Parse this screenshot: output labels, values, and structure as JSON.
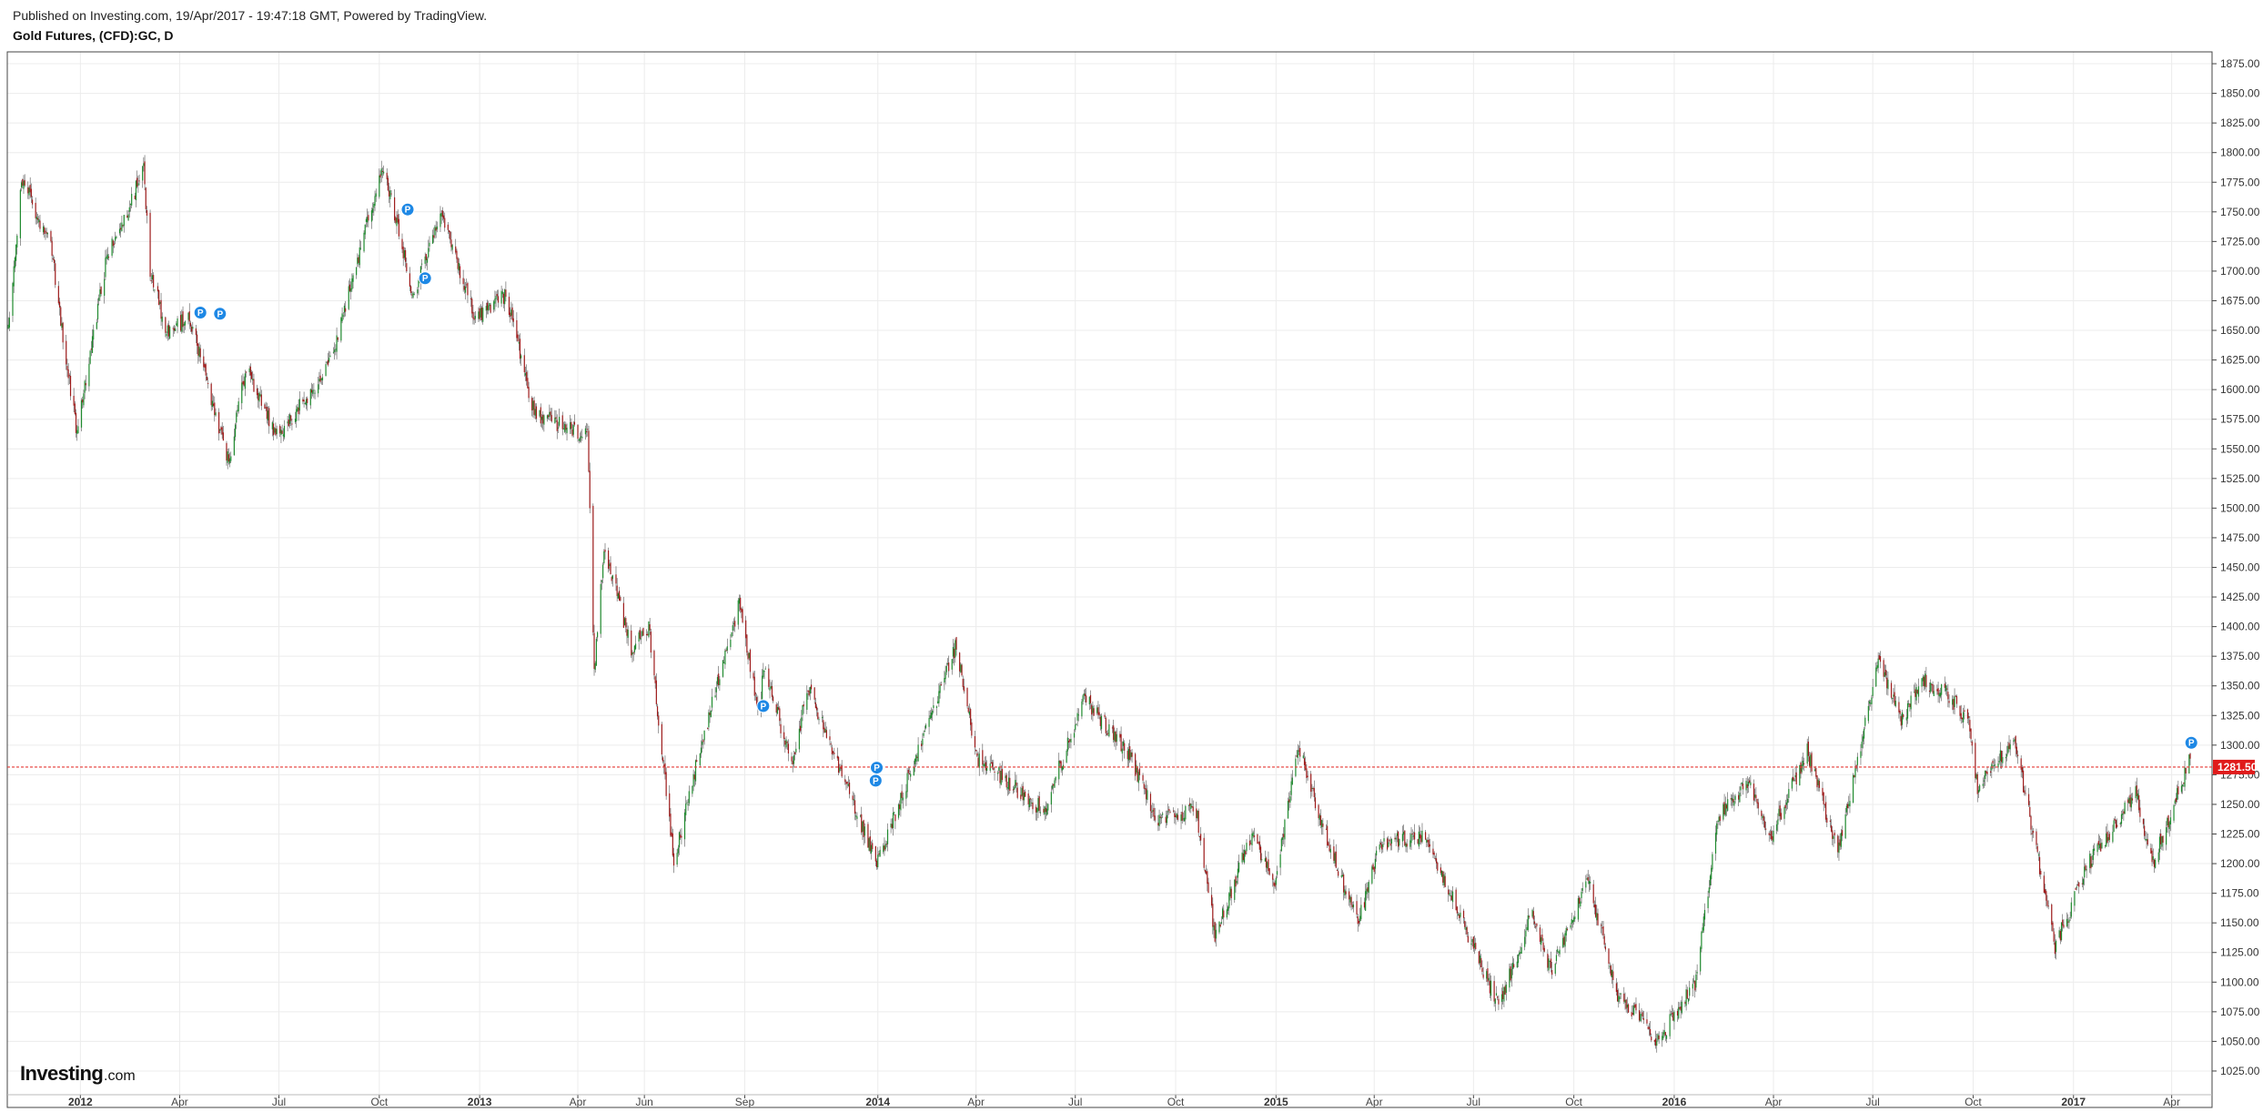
{
  "header": {
    "published": "Published on Investing.com, 19/Apr/2017 - 19:47:18 GMT, Powered by TradingView.",
    "title": "Gold Futures, (CFD):GC, D"
  },
  "logo": {
    "main": "Investing",
    "domain": ".com"
  },
  "colors": {
    "up": "#1f8a2e",
    "down": "#9e1b1b",
    "wick": "#555555",
    "price_line": "#e53935",
    "price_tag": "#e01b1b",
    "marker": "#1e88e5",
    "grid": "#ececec",
    "frame": "#444444"
  },
  "chart_data": {
    "type": "candlestick",
    "title": "Gold Futures, (CFD):GC, D",
    "interval": "D",
    "ylim": [
      1005,
      1885
    ],
    "y_ticks": [
      1025,
      1050,
      1075,
      1100,
      1125,
      1150,
      1175,
      1200,
      1225,
      1250,
      1275,
      1300,
      1325,
      1350,
      1375,
      1400,
      1425,
      1450,
      1475,
      1500,
      1525,
      1550,
      1575,
      1600,
      1625,
      1650,
      1675,
      1700,
      1725,
      1750,
      1775,
      1800,
      1825,
      1850,
      1875
    ],
    "x_ticks": [
      {
        "label": "2012",
        "date": "2012-01-01",
        "bold": true
      },
      {
        "label": "Apr",
        "date": "2012-04-01",
        "bold": false
      },
      {
        "label": "Jul",
        "date": "2012-07-01",
        "bold": false
      },
      {
        "label": "Oct",
        "date": "2012-10-01",
        "bold": false
      },
      {
        "label": "2013",
        "date": "2013-01-01",
        "bold": true
      },
      {
        "label": "Apr",
        "date": "2013-04-01",
        "bold": false
      },
      {
        "label": "Jun",
        "date": "2013-06-01",
        "bold": false
      },
      {
        "label": "Sep",
        "date": "2013-09-01",
        "bold": false
      },
      {
        "label": "2014",
        "date": "2014-01-01",
        "bold": true
      },
      {
        "label": "Apr",
        "date": "2014-04-01",
        "bold": false
      },
      {
        "label": "Jul",
        "date": "2014-07-01",
        "bold": false
      },
      {
        "label": "Oct",
        "date": "2014-10-01",
        "bold": false
      },
      {
        "label": "2015",
        "date": "2015-01-01",
        "bold": true
      },
      {
        "label": "Apr",
        "date": "2015-04-01",
        "bold": false
      },
      {
        "label": "Jul",
        "date": "2015-07-01",
        "bold": false
      },
      {
        "label": "Oct",
        "date": "2015-10-01",
        "bold": false
      },
      {
        "label": "2016",
        "date": "2016-01-01",
        "bold": true
      },
      {
        "label": "Apr",
        "date": "2016-04-01",
        "bold": false
      },
      {
        "label": "Jul",
        "date": "2016-07-01",
        "bold": false
      },
      {
        "label": "Oct",
        "date": "2016-10-01",
        "bold": false
      },
      {
        "label": "2017",
        "date": "2017-01-01",
        "bold": true
      },
      {
        "label": "Apr",
        "date": "2017-04-01",
        "bold": false
      }
    ],
    "x_range": [
      "2011-10-26",
      "2017-05-08"
    ],
    "price_path": [
      [
        "2011-10-27",
        1650
      ],
      [
        "2011-11-08",
        1780
      ],
      [
        "2011-11-15",
        1765
      ],
      [
        "2011-12-05",
        1720
      ],
      [
        "2011-12-29",
        1560
      ],
      [
        "2012-01-06",
        1610
      ],
      [
        "2012-01-25",
        1710
      ],
      [
        "2012-02-28",
        1785
      ],
      [
        "2012-03-05",
        1700
      ],
      [
        "2012-03-20",
        1650
      ],
      [
        "2012-04-10",
        1660
      ],
      [
        "2012-05-16",
        1540
      ],
      [
        "2012-06-01",
        1620
      ],
      [
        "2012-06-28",
        1560
      ],
      [
        "2012-08-01",
        1600
      ],
      [
        "2012-08-22",
        1640
      ],
      [
        "2012-10-04",
        1790
      ],
      [
        "2012-11-01",
        1680
      ],
      [
        "2012-11-26",
        1750
      ],
      [
        "2012-12-28",
        1660
      ],
      [
        "2013-01-25",
        1680
      ],
      [
        "2013-02-20",
        1580
      ],
      [
        "2013-04-10",
        1560
      ],
      [
        "2013-04-16",
        1360
      ],
      [
        "2013-04-25",
        1470
      ],
      [
        "2013-05-20",
        1380
      ],
      [
        "2013-06-05",
        1400
      ],
      [
        "2013-06-28",
        1200
      ],
      [
        "2013-07-20",
        1290
      ],
      [
        "2013-08-27",
        1420
      ],
      [
        "2013-09-15",
        1320
      ],
      [
        "2013-09-18",
        1370
      ],
      [
        "2013-10-15",
        1280
      ],
      [
        "2013-10-28",
        1350
      ],
      [
        "2013-12-31",
        1200
      ],
      [
        "2014-01-20",
        1250
      ],
      [
        "2014-03-14",
        1385
      ],
      [
        "2014-04-01",
        1290
      ],
      [
        "2014-06-02",
        1245
      ],
      [
        "2014-07-10",
        1340
      ],
      [
        "2014-08-20",
        1290
      ],
      [
        "2014-09-15",
        1235
      ],
      [
        "2014-10-20",
        1245
      ],
      [
        "2014-11-06",
        1140
      ],
      [
        "2014-12-10",
        1225
      ],
      [
        "2014-12-31",
        1185
      ],
      [
        "2015-01-22",
        1300
      ],
      [
        "2015-02-15",
        1225
      ],
      [
        "2015-03-17",
        1150
      ],
      [
        "2015-04-06",
        1215
      ],
      [
        "2015-05-18",
        1225
      ],
      [
        "2015-06-10",
        1175
      ],
      [
        "2015-07-24",
        1080
      ],
      [
        "2015-08-24",
        1160
      ],
      [
        "2015-09-10",
        1110
      ],
      [
        "2015-10-14",
        1185
      ],
      [
        "2015-11-10",
        1090
      ],
      [
        "2015-12-17",
        1050
      ],
      [
        "2016-01-20",
        1100
      ],
      [
        "2016-02-11",
        1240
      ],
      [
        "2016-03-10",
        1270
      ],
      [
        "2016-03-28",
        1220
      ],
      [
        "2016-05-02",
        1295
      ],
      [
        "2016-05-30",
        1210
      ],
      [
        "2016-07-06",
        1370
      ],
      [
        "2016-07-27",
        1320
      ],
      [
        "2016-08-15",
        1355
      ],
      [
        "2016-09-06",
        1345
      ],
      [
        "2016-09-27",
        1320
      ],
      [
        "2016-10-05",
        1265
      ],
      [
        "2016-11-08",
        1305
      ],
      [
        "2016-12-15",
        1130
      ],
      [
        "2017-01-15",
        1200
      ],
      [
        "2017-02-27",
        1260
      ],
      [
        "2017-03-15",
        1200
      ],
      [
        "2017-04-18",
        1290
      ]
    ],
    "last_price": 1281.5,
    "last_price_label": "1281.50",
    "markers": [
      {
        "date": "2012-04-20",
        "price": 1665,
        "label": "P"
      },
      {
        "date": "2012-05-08",
        "price": 1664,
        "label": "P"
      },
      {
        "date": "2012-10-27",
        "price": 1752,
        "label": "P"
      },
      {
        "date": "2012-11-12",
        "price": 1694,
        "label": "P"
      },
      {
        "date": "2013-09-18",
        "price": 1333,
        "label": "P"
      },
      {
        "date": "2013-12-31",
        "price": 1281,
        "label": "P"
      },
      {
        "date": "2013-12-30",
        "price": 1270,
        "label": "P"
      },
      {
        "date": "2017-04-19",
        "price": 1302,
        "label": "P"
      }
    ]
  }
}
